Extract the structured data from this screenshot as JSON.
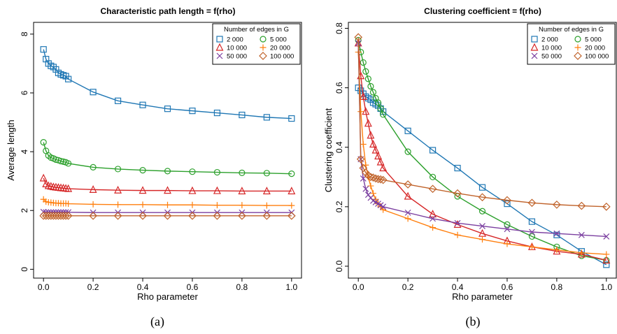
{
  "figure": {
    "captions": [
      "(a)",
      "(b)"
    ]
  },
  "chart_data": [
    {
      "type": "line",
      "title": "Characteristic path length = f(rho)",
      "xlabel": "Rho parameter",
      "ylabel": "Average length",
      "xlim": [
        -0.04,
        1.04
      ],
      "ylim": [
        -0.3,
        8.4
      ],
      "xticks": [
        0.0,
        0.2,
        0.4,
        0.6,
        0.8,
        1.0
      ],
      "xtick_labels": [
        "0.0",
        "0.2",
        "0.4",
        "0.6",
        "0.8",
        "1.0"
      ],
      "yticks": [
        0,
        2,
        4,
        6,
        8
      ],
      "ytick_labels": [
        "0",
        "2",
        "4",
        "6",
        "8"
      ],
      "grid": false,
      "legend": {
        "title": "Number of edges in G",
        "placement": "top-right",
        "columns": 2
      },
      "x": [
        0.0,
        0.01,
        0.02,
        0.03,
        0.04,
        0.05,
        0.06,
        0.07,
        0.08,
        0.09,
        0.1,
        0.2,
        0.3,
        0.4,
        0.5,
        0.6,
        0.7,
        0.8,
        0.9,
        1.0
      ],
      "series": [
        {
          "name": "2 000",
          "color": "#1f77b4",
          "marker": "square",
          "values": [
            7.48,
            7.15,
            7.0,
            6.92,
            6.88,
            6.8,
            6.68,
            6.63,
            6.6,
            6.57,
            6.47,
            6.03,
            5.73,
            5.59,
            5.46,
            5.39,
            5.32,
            5.25,
            5.17,
            5.13
          ]
        },
        {
          "name": "5 000",
          "color": "#2ca02c",
          "marker": "circle",
          "values": [
            4.32,
            4.03,
            3.87,
            3.8,
            3.77,
            3.73,
            3.71,
            3.68,
            3.66,
            3.64,
            3.6,
            3.47,
            3.41,
            3.37,
            3.34,
            3.32,
            3.3,
            3.28,
            3.27,
            3.25
          ]
        },
        {
          "name": "10 000",
          "color": "#d62728",
          "marker": "triangle",
          "values": [
            3.1,
            2.9,
            2.84,
            2.82,
            2.8,
            2.79,
            2.78,
            2.77,
            2.76,
            2.75,
            2.74,
            2.71,
            2.69,
            2.68,
            2.68,
            2.67,
            2.67,
            2.66,
            2.66,
            2.66
          ]
        },
        {
          "name": "20 000",
          "color": "#ff7f0e",
          "marker": "plus",
          "values": [
            2.38,
            2.3,
            2.28,
            2.27,
            2.26,
            2.25,
            2.25,
            2.24,
            2.24,
            2.24,
            2.23,
            2.21,
            2.2,
            2.2,
            2.19,
            2.19,
            2.18,
            2.18,
            2.17,
            2.17
          ]
        },
        {
          "name": "50 000",
          "color": "#7b3fa0",
          "marker": "x",
          "values": [
            1.95,
            1.94,
            1.94,
            1.94,
            1.94,
            1.94,
            1.94,
            1.94,
            1.94,
            1.94,
            1.94,
            1.93,
            1.93,
            1.93,
            1.93,
            1.93,
            1.93,
            1.93,
            1.93,
            1.93
          ]
        },
        {
          "name": "100 000",
          "color": "#c0632b",
          "marker": "diamond",
          "values": [
            1.82,
            1.82,
            1.82,
            1.82,
            1.82,
            1.82,
            1.82,
            1.82,
            1.82,
            1.82,
            1.82,
            1.82,
            1.82,
            1.82,
            1.82,
            1.82,
            1.82,
            1.82,
            1.82,
            1.82
          ]
        }
      ]
    },
    {
      "type": "line",
      "title": "Clustering coefficient = f(rho)",
      "xlabel": "Rho parameter",
      "ylabel": "Clustering coefficient",
      "xlim": [
        -0.04,
        1.04
      ],
      "ylim": [
        -0.04,
        0.82
      ],
      "xticks": [
        0.0,
        0.2,
        0.4,
        0.6,
        0.8,
        1.0
      ],
      "xtick_labels": [
        "0.0",
        "0.2",
        "0.4",
        "0.6",
        "0.8",
        "1.0"
      ],
      "yticks": [
        0.0,
        0.2,
        0.4,
        0.6,
        0.8
      ],
      "ytick_labels": [
        "0.0",
        "0.2",
        "0.4",
        "0.6",
        "0.8"
      ],
      "grid": false,
      "legend": {
        "title": "Number of edges in G",
        "placement": "top-right",
        "columns": 2
      },
      "x": [
        0.0,
        0.01,
        0.02,
        0.03,
        0.04,
        0.05,
        0.06,
        0.07,
        0.08,
        0.09,
        0.1,
        0.2,
        0.3,
        0.4,
        0.5,
        0.6,
        0.7,
        0.8,
        0.9,
        1.0
      ],
      "series": [
        {
          "name": "2 000",
          "color": "#1f77b4",
          "marker": "square",
          "values": [
            0.6,
            0.59,
            0.58,
            0.57,
            0.565,
            0.56,
            0.55,
            0.545,
            0.54,
            0.53,
            0.52,
            0.455,
            0.39,
            0.33,
            0.265,
            0.21,
            0.15,
            0.105,
            0.05,
            0.005
          ]
        },
        {
          "name": "5 000",
          "color": "#2ca02c",
          "marker": "circle",
          "values": [
            0.76,
            0.72,
            0.685,
            0.655,
            0.63,
            0.605,
            0.585,
            0.565,
            0.55,
            0.53,
            0.51,
            0.385,
            0.3,
            0.235,
            0.185,
            0.14,
            0.1,
            0.065,
            0.035,
            0.02
          ]
        },
        {
          "name": "10 000",
          "color": "#d62728",
          "marker": "triangle",
          "values": [
            0.75,
            0.64,
            0.57,
            0.52,
            0.48,
            0.44,
            0.41,
            0.39,
            0.37,
            0.35,
            0.33,
            0.235,
            0.175,
            0.14,
            0.11,
            0.085,
            0.065,
            0.05,
            0.04,
            0.02
          ]
        },
        {
          "name": "20 000",
          "color": "#ff7f0e",
          "marker": "plus",
          "values": [
            0.72,
            0.52,
            0.41,
            0.34,
            0.3,
            0.27,
            0.245,
            0.225,
            0.21,
            0.2,
            0.19,
            0.16,
            0.13,
            0.105,
            0.09,
            0.075,
            0.065,
            0.055,
            0.045,
            0.04
          ]
        },
        {
          "name": "50 000",
          "color": "#7b3fa0",
          "marker": "x",
          "values": [
            0.75,
            0.36,
            0.295,
            0.26,
            0.24,
            0.23,
            0.22,
            0.215,
            0.21,
            0.205,
            0.2,
            0.18,
            0.16,
            0.145,
            0.135,
            0.125,
            0.115,
            0.11,
            0.105,
            0.1
          ]
        },
        {
          "name": "100 000",
          "color": "#c0632b",
          "marker": "diamond",
          "values": [
            0.77,
            0.36,
            0.33,
            0.315,
            0.305,
            0.3,
            0.298,
            0.295,
            0.293,
            0.292,
            0.29,
            0.275,
            0.26,
            0.245,
            0.232,
            0.222,
            0.213,
            0.207,
            0.203,
            0.2
          ]
        }
      ]
    }
  ]
}
